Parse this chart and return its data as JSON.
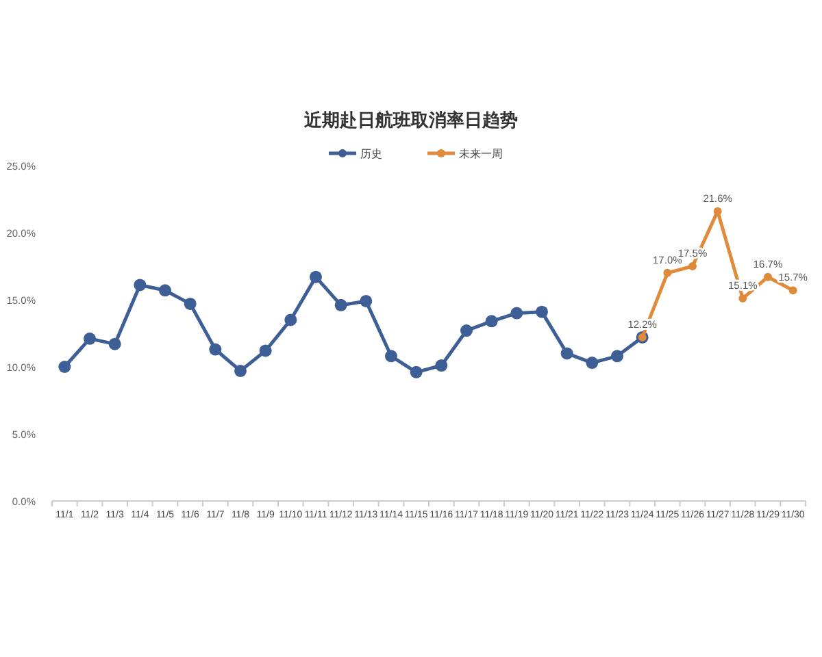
{
  "chart_data": {
    "type": "line",
    "title": "近期赴日航班取消率日趋势",
    "categories": [
      "11/1",
      "11/2",
      "11/3",
      "11/4",
      "11/5",
      "11/6",
      "11/7",
      "11/8",
      "11/9",
      "11/10",
      "11/11",
      "11/12",
      "11/13",
      "11/14",
      "11/15",
      "11/16",
      "11/17",
      "11/18",
      "11/19",
      "11/20",
      "11/21",
      "11/22",
      "11/23",
      "11/24",
      "11/25",
      "11/26",
      "11/27",
      "11/28",
      "11/29",
      "11/30"
    ],
    "series": [
      {
        "name": "历史",
        "color": "#3d5f96",
        "values": [
          10.0,
          12.1,
          11.7,
          16.1,
          15.7,
          14.7,
          11.3,
          9.7,
          11.2,
          13.5,
          16.7,
          14.6,
          14.9,
          10.8,
          9.6,
          10.1,
          12.7,
          13.4,
          14.0,
          14.1,
          11.0,
          10.3,
          10.8,
          12.2,
          null,
          null,
          null,
          null,
          null,
          null
        ]
      },
      {
        "name": "未来一周",
        "color": "#e08a3c",
        "values": [
          null,
          null,
          null,
          null,
          null,
          null,
          null,
          null,
          null,
          null,
          null,
          null,
          null,
          null,
          null,
          null,
          null,
          null,
          null,
          null,
          null,
          null,
          null,
          12.2,
          17.0,
          17.5,
          21.6,
          15.1,
          16.7,
          15.7
        ],
        "value_labels": [
          null,
          null,
          null,
          null,
          null,
          null,
          null,
          null,
          null,
          null,
          null,
          null,
          null,
          null,
          null,
          null,
          null,
          null,
          null,
          null,
          null,
          null,
          null,
          "12.2%",
          "17.0%",
          "17.5%",
          "21.6%",
          "15.1%",
          "16.7%",
          "15.7%"
        ]
      }
    ],
    "ylim": [
      0,
      25
    ],
    "yticks": [
      {
        "value": 0,
        "label": "0.0%"
      },
      {
        "value": 5,
        "label": "5.0%"
      },
      {
        "value": 10,
        "label": "10.0%"
      },
      {
        "value": 15,
        "label": "15.0%"
      },
      {
        "value": 20,
        "label": "20.0%"
      },
      {
        "value": 25,
        "label": "25.0%"
      }
    ],
    "grid": false,
    "legend": "top",
    "marker": "circle",
    "line_style": "solid"
  }
}
